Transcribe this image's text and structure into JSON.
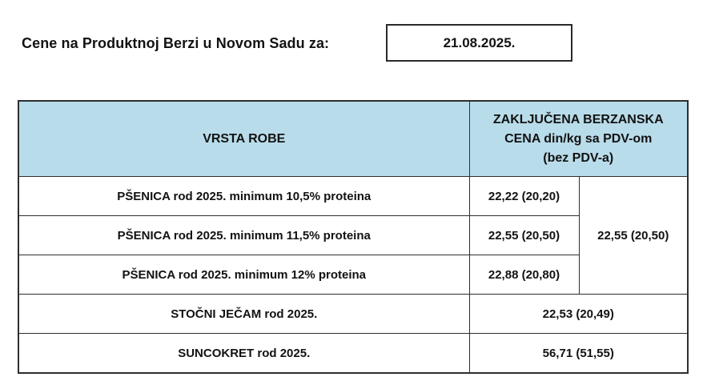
{
  "header": {
    "title": "Cene na Produktnoj Berzi u Novom Sadu za:",
    "date": "21.08.2025."
  },
  "table": {
    "columns": {
      "product": "VRSTA ROBE",
      "price": "ZAKLJUČENA BERZANSKA\nCENA din/kg sa PDV-om\n(bez PDV-a)"
    },
    "rows": [
      {
        "name": "PŠENICA rod 2025. minimum 10,5% proteina",
        "price": "22,22 (20,20)"
      },
      {
        "name": "PŠENICA rod 2025. minimum 11,5% proteina",
        "price": "22,55 (20,50)"
      },
      {
        "name": "PŠENICA rod 2025. minimum 12% proteina",
        "price": "22,88 (20,80)"
      },
      {
        "name": "STOČNI JEČAM rod 2025.",
        "price": "22,53 (20,49)"
      },
      {
        "name": "SUNCOKRET rod 2025.",
        "price": "56,71 (51,55)"
      }
    ],
    "merged_wheat_price": "22,55 (20,50)",
    "colors": {
      "header_bg": "#b9dcea",
      "border": "#2e2e2e",
      "text": "#121212"
    }
  }
}
